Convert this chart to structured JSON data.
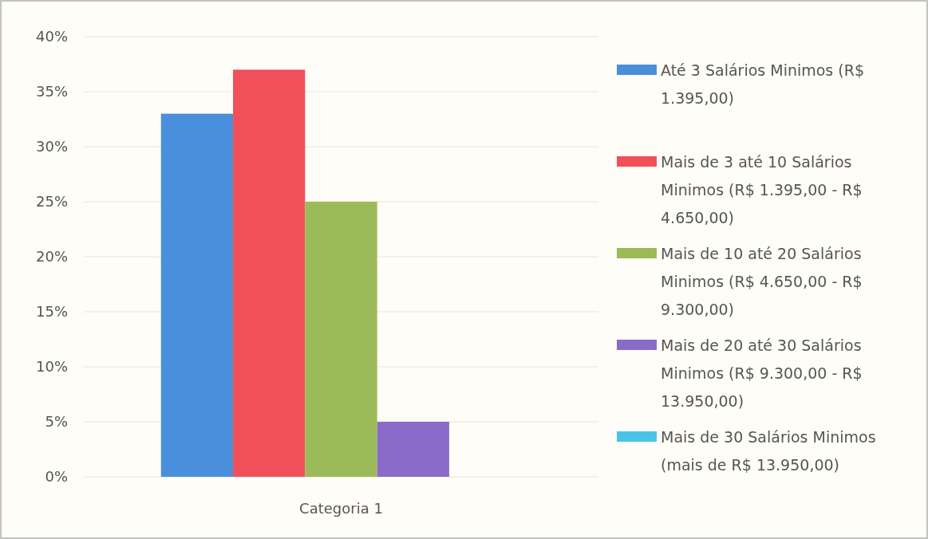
{
  "chart_data": {
    "type": "bar",
    "categories": [
      "Categoria 1"
    ],
    "series": [
      {
        "name": "Até 3 Salários Minimos (R$ 1.395,00)",
        "color": "#4a8fdc",
        "values": [
          33
        ]
      },
      {
        "name": "Mais de 3 até 10 Salários Minimos (R$ 1.395,00 - R$ 4.650,00)",
        "color": "#f0505a",
        "values": [
          37
        ]
      },
      {
        "name": "Mais de 10 até 20 Salários Minimos (R$ 4.650,00 - R$ 9.300,00)",
        "color": "#9bbb59",
        "values": [
          25
        ]
      },
      {
        "name": "Mais de 20 até 30 Salários Minimos (R$ 9.300,00 - R$ 13.950,00)",
        "color": "#8a6bc9",
        "values": [
          5
        ]
      },
      {
        "name": "Mais de 30 Salários Minimos (mais de R$ 13.950,00)",
        "color": "#4bc3e6",
        "values": [
          0
        ]
      }
    ],
    "ylim": [
      0,
      40
    ],
    "yticks": [
      {
        "value": 0,
        "label": "0%"
      },
      {
        "value": 5,
        "label": "5%"
      },
      {
        "value": 10,
        "label": "10%"
      },
      {
        "value": 15,
        "label": "15%"
      },
      {
        "value": 20,
        "label": "20%"
      },
      {
        "value": 25,
        "label": "25%"
      },
      {
        "value": 30,
        "label": "30%"
      },
      {
        "value": 35,
        "label": "35%"
      },
      {
        "value": 40,
        "label": "40%"
      }
    ],
    "grid": "y",
    "legend": "right"
  }
}
